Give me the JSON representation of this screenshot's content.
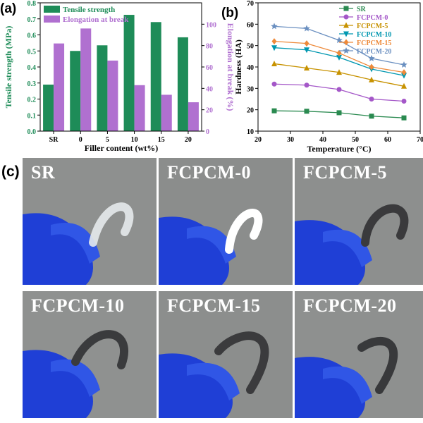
{
  "chart_data": [
    {
      "panel": "(a)",
      "type": "bar",
      "categories": [
        "SR",
        "0",
        "5",
        "10",
        "15",
        "20"
      ],
      "xlabel": "Filler content (wt%)",
      "series": [
        {
          "name": "Tensile strength",
          "axis": "left",
          "color": "#1e8c58",
          "values": [
            0.29,
            0.5,
            0.535,
            0.725,
            0.68,
            0.585
          ]
        },
        {
          "name": "Elongation at break",
          "axis": "right",
          "color": "#b070d0",
          "values": [
            82,
            96,
            66,
            43,
            34,
            27
          ]
        }
      ],
      "ylabel_left": "Tensile strength (MPa)",
      "ylabel_right": "Elongation at break (%)",
      "ylim_left": [
        0,
        0.8
      ],
      "ylim_right": [
        0,
        120
      ],
      "yticks_left": [
        "0.0",
        "0.1",
        "0.2",
        "0.3",
        "0.4",
        "0.5",
        "0.6",
        "0.7",
        "0.8"
      ],
      "yticks_right": [
        "0",
        "20",
        "40",
        "60",
        "80",
        "100"
      ],
      "legend": "top-left"
    },
    {
      "panel": "(b)",
      "type": "line",
      "x": [
        25,
        35,
        45,
        55,
        65
      ],
      "xlabel": "Temperature (°C)",
      "ylabel": "Hardness (HA)",
      "xlim": [
        20,
        70
      ],
      "ylim": [
        10,
        70
      ],
      "xticks": [
        "20",
        "30",
        "40",
        "50",
        "60",
        "70"
      ],
      "yticks": [
        "10",
        "20",
        "30",
        "40",
        "50",
        "60",
        "70"
      ],
      "legend": "top-right",
      "series": [
        {
          "name": "SR",
          "color": "#2a8a50",
          "marker": "square",
          "values": [
            19.5,
            19.3,
            18.6,
            17.0,
            16.2
          ]
        },
        {
          "name": "FCPCM-0",
          "color": "#a457c8",
          "marker": "circle",
          "values": [
            32.0,
            31.5,
            29.5,
            25.0,
            24.0
          ]
        },
        {
          "name": "FCPCM-5",
          "color": "#c79200",
          "marker": "triangle-up",
          "values": [
            41.5,
            39.5,
            37.5,
            34.0,
            31.0
          ]
        },
        {
          "name": "FCPCM-10",
          "color": "#0097b0",
          "marker": "triangle-down",
          "values": [
            49.0,
            48.0,
            44.5,
            39.0,
            36.0
          ]
        },
        {
          "name": "FCPCM-15",
          "color": "#ee8a3a",
          "marker": "diamond",
          "values": [
            52.0,
            51.0,
            46.5,
            40.0,
            37.5
          ]
        },
        {
          "name": "FCPCM-20",
          "color": "#6a8fc0",
          "marker": "star",
          "values": [
            59.0,
            58.0,
            52.5,
            44.0,
            41.0
          ]
        }
      ]
    }
  ],
  "panel_c": {
    "label": "(c)",
    "photos": [
      {
        "label": "SR",
        "strip_color": "#e9ecee"
      },
      {
        "label": "FCPCM-0",
        "strip_color": "#ffffff"
      },
      {
        "label": "FCPCM-5",
        "strip_color": "#3a3a3c"
      },
      {
        "label": "FCPCM-10",
        "strip_color": "#3a3b3d"
      },
      {
        "label": "FCPCM-15",
        "strip_color": "#3b3b3d"
      },
      {
        "label": "FCPCM-20",
        "strip_color": "#38393b"
      }
    ],
    "glove_color": "#1f3fd6"
  }
}
